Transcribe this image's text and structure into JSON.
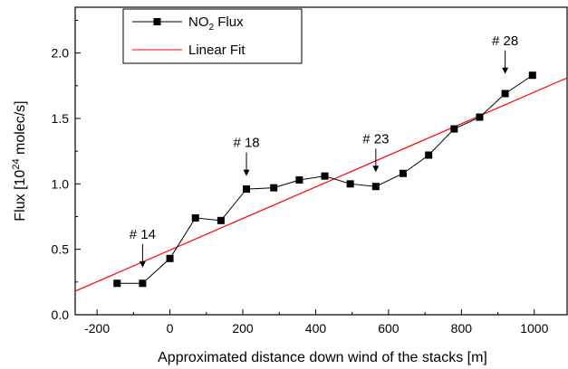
{
  "chart_data": {
    "type": "line",
    "title": "",
    "xlabel": "Approximated distance down wind of the stacks [m]",
    "ylabel": {
      "prefix": "Flux [10",
      "exponent": "24",
      "suffix": " molec/s]"
    },
    "xlim": [
      -260,
      1090
    ],
    "ylim": [
      0.0,
      2.35
    ],
    "xticks": [
      -200,
      0,
      200,
      400,
      600,
      800,
      1000
    ],
    "yticks": [
      0.0,
      0.5,
      1.0,
      1.5,
      2.0
    ],
    "xtick_labels": [
      "-200",
      "0",
      "200",
      "400",
      "600",
      "800",
      "1000"
    ],
    "ytick_labels": [
      "0.0",
      "0.5",
      "1.0",
      "1.5",
      "2.0"
    ],
    "series": [
      {
        "name": "NO2 Flux",
        "legend": {
          "main": "NO",
          "subscript": "2",
          "rest": " Flux"
        },
        "color": "#000000",
        "marker": "square",
        "x": [
          -145,
          -75,
          0,
          70,
          140,
          210,
          285,
          355,
          425,
          495,
          565,
          640,
          710,
          780,
          850,
          920,
          995
        ],
        "y": [
          0.24,
          0.24,
          0.43,
          0.74,
          0.72,
          0.96,
          0.97,
          1.03,
          1.06,
          1.0,
          0.98,
          1.08,
          1.22,
          1.42,
          1.51,
          1.69,
          1.83
        ]
      },
      {
        "name": "Linear Fit",
        "legend": {
          "main": "Linear Fit",
          "subscript": "",
          "rest": ""
        },
        "color": "#ff0000",
        "marker": "none",
        "x": [
          -260,
          1090
        ],
        "y": [
          0.18,
          1.81
        ]
      }
    ],
    "annotations": [
      {
        "text": "# 14",
        "x": -75,
        "y": 0.36
      },
      {
        "text": "# 18",
        "x": 210,
        "y": 1.06
      },
      {
        "text": "# 23",
        "x": 565,
        "y": 1.09
      },
      {
        "text": "# 28",
        "x": 920,
        "y": 1.84
      }
    ],
    "legend_position": "top-left",
    "grid": false
  }
}
